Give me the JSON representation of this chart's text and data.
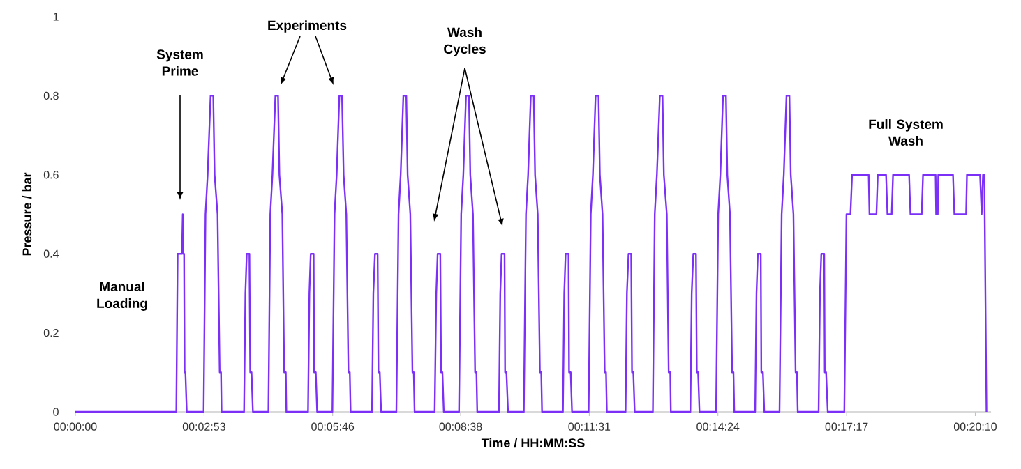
{
  "chart_data": {
    "type": "line",
    "xlabel": "Time / HH:MM:SS",
    "ylabel": "Pressure / bar",
    "x": [
      0,
      0.0377,
      0.0382,
      0.0398,
      0.0401,
      0.0403,
      0.0406,
      0.0408,
      0.0411,
      0.0416,
      0.0479,
      0.0486,
      0.0494,
      0.0505,
      0.0515,
      0.052,
      0.0531,
      0.0539,
      0.0544,
      0.0546,
      0.063,
      0.0635,
      0.064,
      0.065,
      0.0653,
      0.0658,
      0.0663,
      0.0721,
      0.0728,
      0.0736,
      0.0747,
      0.0757,
      0.0762,
      0.0773,
      0.078,
      0.0786,
      0.0788,
      0.0869,
      0.0874,
      0.0879,
      0.089,
      0.0892,
      0.0898,
      0.0903,
      0.096,
      0.0968,
      0.0976,
      0.0986,
      0.0996,
      0.1002,
      0.1012,
      0.102,
      0.1025,
      0.1028,
      0.1108,
      0.1113,
      0.1119,
      0.1129,
      0.1132,
      0.1137,
      0.1142,
      0.1199,
      0.1207,
      0.1215,
      0.1225,
      0.1236,
      0.1241,
      0.1251,
      0.1259,
      0.1264,
      0.1267,
      0.1342,
      0.1348,
      0.1353,
      0.1363,
      0.1366,
      0.1371,
      0.1376,
      0.1433,
      0.1441,
      0.1449,
      0.1459,
      0.147,
      0.1475,
      0.1485,
      0.1493,
      0.1498,
      0.1501,
      0.1582,
      0.1587,
      0.1592,
      0.1603,
      0.1605,
      0.161,
      0.1616,
      0.1675,
      0.1683,
      0.1691,
      0.1701,
      0.1712,
      0.1717,
      0.1727,
      0.1735,
      0.174,
      0.1743,
      0.1821,
      0.1826,
      0.1831,
      0.1842,
      0.1844,
      0.185,
      0.1855,
      0.1917,
      0.1925,
      0.1933,
      0.1943,
      0.1954,
      0.1959,
      0.1969,
      0.1977,
      0.1982,
      0.1985,
      0.2055,
      0.206,
      0.2066,
      0.2076,
      0.2079,
      0.2084,
      0.2089,
      0.2157,
      0.2164,
      0.2172,
      0.2183,
      0.2193,
      0.2198,
      0.2209,
      0.2216,
      0.2222,
      0.2224,
      0.2297,
      0.2302,
      0.2308,
      0.2318,
      0.2321,
      0.2326,
      0.2331,
      0.2393,
      0.2401,
      0.2409,
      0.2419,
      0.243,
      0.2435,
      0.2445,
      0.2453,
      0.2458,
      0.2461,
      0.2539,
      0.2544,
      0.2549,
      0.256,
      0.2562,
      0.2568,
      0.2573,
      0.263,
      0.2638,
      0.2646,
      0.2656,
      0.2667,
      0.2672,
      0.2682,
      0.269,
      0.2695,
      0.2698,
      0.2776,
      0.2781,
      0.2786,
      0.2797,
      0.2799,
      0.2804,
      0.281,
      0.2872,
      0.288,
      0.2895,
      0.2901,
      0.2963,
      0.2966,
      0.2992,
      0.2997,
      0.3028,
      0.3033,
      0.3049,
      0.3054,
      0.3114,
      0.3119,
      0.3161,
      0.3166,
      0.3213,
      0.3215,
      0.3221,
      0.3223,
      0.3278,
      0.3283,
      0.3327,
      0.333,
      0.3379,
      0.3385,
      0.339,
      0.3395,
      0.3403
    ],
    "series": [
      {
        "color": "#7b2ff7",
        "values": [
          0,
          0,
          0.4,
          0.4,
          0.5,
          0.4,
          0.4,
          0.1,
          0.1,
          0,
          0,
          0.5,
          0.6,
          0.8,
          0.8,
          0.6,
          0.5,
          0.1,
          0.1,
          0,
          0,
          0.3,
          0.4,
          0.4,
          0.1,
          0.1,
          0,
          0,
          0.5,
          0.6,
          0.8,
          0.8,
          0.6,
          0.5,
          0.1,
          0.1,
          0,
          0,
          0.3,
          0.4,
          0.4,
          0.1,
          0.1,
          0,
          0,
          0.5,
          0.6,
          0.8,
          0.8,
          0.6,
          0.5,
          0.1,
          0.1,
          0,
          0,
          0.3,
          0.4,
          0.4,
          0.1,
          0.1,
          0,
          0,
          0.5,
          0.6,
          0.8,
          0.8,
          0.6,
          0.5,
          0.1,
          0.1,
          0,
          0,
          0.3,
          0.4,
          0.4,
          0.1,
          0.1,
          0,
          0,
          0.5,
          0.6,
          0.8,
          0.8,
          0.6,
          0.5,
          0.1,
          0.1,
          0,
          0,
          0.3,
          0.4,
          0.4,
          0.1,
          0.1,
          0,
          0,
          0.5,
          0.6,
          0.8,
          0.8,
          0.6,
          0.5,
          0.1,
          0.1,
          0,
          0,
          0.3,
          0.4,
          0.4,
          0.1,
          0.1,
          0,
          0,
          0.5,
          0.6,
          0.8,
          0.8,
          0.6,
          0.5,
          0.1,
          0.1,
          0,
          0,
          0.3,
          0.4,
          0.4,
          0.1,
          0.1,
          0,
          0,
          0.5,
          0.6,
          0.8,
          0.8,
          0.6,
          0.5,
          0.1,
          0.1,
          0,
          0,
          0.3,
          0.4,
          0.4,
          0.1,
          0.1,
          0,
          0,
          0.5,
          0.6,
          0.8,
          0.8,
          0.6,
          0.5,
          0.1,
          0.1,
          0,
          0,
          0.3,
          0.4,
          0.4,
          0.1,
          0.1,
          0,
          0,
          0.5,
          0.6,
          0.8,
          0.8,
          0.6,
          0.5,
          0.1,
          0.1,
          0,
          0,
          0.3,
          0.4,
          0.4,
          0.1,
          0.1,
          0,
          0,
          0.5,
          0.5,
          0.6,
          0.6,
          0.5,
          0.5,
          0.6,
          0.6,
          0.5,
          0.5,
          0.6,
          0.6,
          0.5,
          0.5,
          0.6,
          0.6,
          0.5,
          0.5,
          0.6,
          0.6,
          0.5,
          0.5,
          0.6,
          0.6,
          0.5,
          0.6,
          0.6,
          0
        ]
      }
    ],
    "xlim": [
      0,
      0.342
    ],
    "xticks": [
      {
        "value": 0,
        "label": "00:00:00"
      },
      {
        "value": 0.04806,
        "label": "00:02:53"
      },
      {
        "value": 0.09611,
        "label": "00:05:46"
      },
      {
        "value": 0.14389,
        "label": "00:08:38"
      },
      {
        "value": 0.19194,
        "label": "00:11:31"
      },
      {
        "value": 0.24,
        "label": "00:14:24"
      },
      {
        "value": 0.28806,
        "label": "00:17:17"
      },
      {
        "value": 0.33611,
        "label": "00:20:10"
      }
    ],
    "ylim": [
      0,
      1
    ],
    "yticks": [
      0,
      0.2,
      0.4,
      0.6,
      0.8,
      1
    ],
    "marker": "none",
    "line_style": "solid",
    "annotations": [
      "System Prime",
      "Experiments",
      "Wash Cycles",
      "Full System Wash",
      "Manual Loading"
    ]
  }
}
